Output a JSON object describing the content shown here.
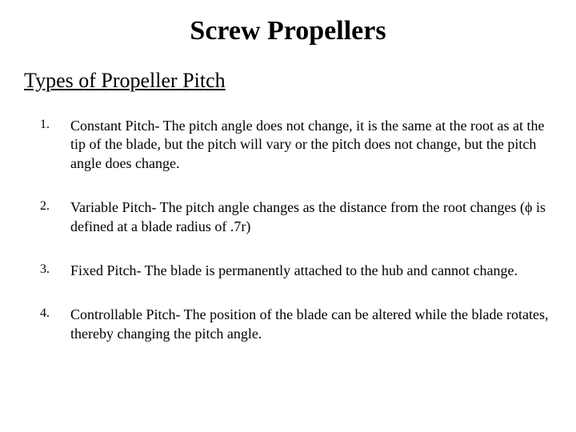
{
  "title": "Screw Propellers",
  "subtitle": "Types of Propeller Pitch",
  "items": [
    {
      "num": "1.",
      "text": "Constant Pitch- The pitch angle does not change, it is the same at the root as at the tip of the blade, but the pitch will vary or the pitch does not change, but the pitch angle does change."
    },
    {
      "num": "2.",
      "text": "Variable Pitch- The pitch angle changes as the distance from the root changes (ϕ is defined at a blade radius of .7r)"
    },
    {
      "num": "3.",
      "text": "Fixed Pitch- The blade is permanently attached to the hub and cannot change."
    },
    {
      "num": "4.",
      "text": "Controllable Pitch- The position of the blade can be altered while the blade rotates, thereby changing the pitch angle."
    }
  ]
}
